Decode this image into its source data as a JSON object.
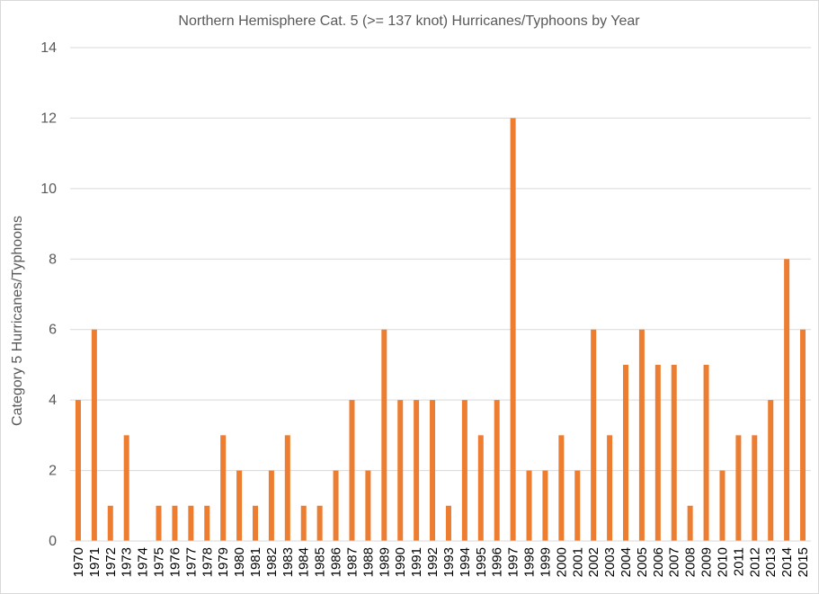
{
  "chart_data": {
    "type": "bar",
    "title": "Northern Hemisphere Cat. 5 (>= 137 knot) Hurricanes/Typhoons by Year",
    "xlabel": "",
    "ylabel": "Category 5 Hurricanes/Typhoons",
    "ylim": [
      0,
      14
    ],
    "yticks": [
      0,
      2,
      4,
      6,
      8,
      10,
      12,
      14
    ],
    "grid": true,
    "legend": "none",
    "bar_color": "#ED7D31",
    "categories": [
      "1970",
      "1971",
      "1972",
      "1973",
      "1974",
      "1975",
      "1976",
      "1977",
      "1978",
      "1979",
      "1980",
      "1981",
      "1982",
      "1983",
      "1984",
      "1985",
      "1986",
      "1987",
      "1988",
      "1989",
      "1990",
      "1991",
      "1992",
      "1993",
      "1994",
      "1995",
      "1996",
      "1997",
      "1998",
      "1999",
      "2000",
      "2001",
      "2002",
      "2003",
      "2004",
      "2005",
      "2006",
      "2007",
      "2008",
      "2009",
      "2010",
      "2011",
      "2012",
      "2013",
      "2014",
      "2015"
    ],
    "values": [
      4,
      6,
      1,
      3,
      0,
      1,
      1,
      1,
      1,
      3,
      2,
      1,
      2,
      3,
      1,
      1,
      2,
      4,
      2,
      6,
      4,
      4,
      4,
      1,
      4,
      3,
      4,
      12,
      2,
      2,
      3,
      2,
      6,
      3,
      5,
      6,
      5,
      5,
      1,
      5,
      2,
      3,
      3,
      4,
      8,
      6
    ]
  }
}
